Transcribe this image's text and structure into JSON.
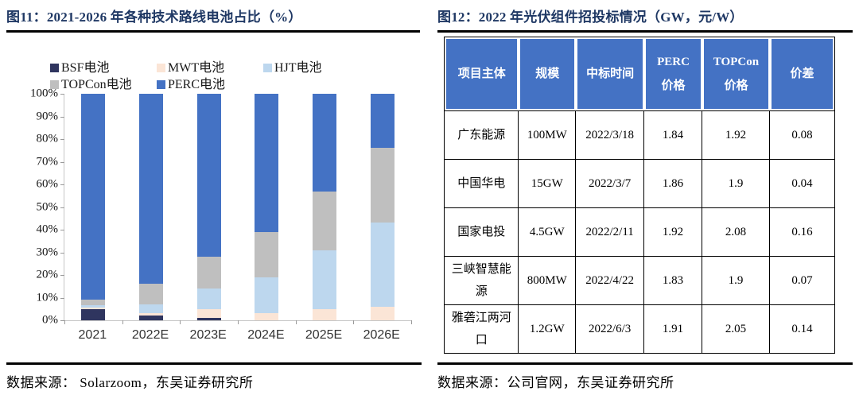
{
  "colors": {
    "title_navy": "#1f3864",
    "table_header_bg": "#4472c4",
    "rule_black": "#000000",
    "axis_gray": "#c6c6c6"
  },
  "left_panel": {
    "title": "图11：2021-2026 年各种技术路线电池占比（%）",
    "source": "数据来源： Solarzoom，东吴证券研究所"
  },
  "chart_data": {
    "type": "bar",
    "stacked": true,
    "percent_stack": true,
    "title": "2021-2026 年各种技术路线电池占比（%）",
    "xlabel": "",
    "ylabel": "",
    "ylim": [
      0,
      100
    ],
    "gridlines": false,
    "legend_position": "top",
    "categories": [
      "2021",
      "2022E",
      "2023E",
      "2024E",
      "2025E",
      "2026E"
    ],
    "series": [
      {
        "name": "BSF电池",
        "color": "#2f355f",
        "values": [
          5,
          2,
          1,
          0,
          0,
          0
        ]
      },
      {
        "name": "MWT电池",
        "color": "#fbe5d6",
        "values": [
          0.5,
          1,
          4,
          3,
          5,
          6
        ]
      },
      {
        "name": "HJT电池",
        "color": "#bdd7ee",
        "values": [
          1,
          4,
          9,
          16,
          26,
          37
        ]
      },
      {
        "name": "TOPCon电池",
        "color": "#bfbfbf",
        "values": [
          2.5,
          9,
          14,
          20,
          26,
          33
        ]
      },
      {
        "name": "PERC电池",
        "color": "#4472c4",
        "values": [
          91,
          84,
          72,
          61,
          43,
          24
        ]
      }
    ],
    "y_ticks": [
      "100%",
      "90%",
      "80%",
      "70%",
      "60%",
      "50%",
      "40%",
      "30%",
      "20%",
      "10%",
      "0%"
    ]
  },
  "right_panel": {
    "title": "图12：2022 年光伏组件招投标情况（GW，元/W）",
    "source": "数据来源：公司官网，东吴证券研究所",
    "table": {
      "headers": [
        [
          "项目主体"
        ],
        [
          "规模"
        ],
        [
          "中标时间"
        ],
        [
          "PERC",
          "价格"
        ],
        [
          "TOPCon",
          "价格"
        ],
        [
          "价差"
        ]
      ],
      "rows": [
        [
          "广东能源",
          "100MW",
          "2022/3/18",
          "1.84",
          "1.92",
          "0.08"
        ],
        [
          "中国华电",
          "15GW",
          "2022/3/7",
          "1.86",
          "1.9",
          "0.04"
        ],
        [
          "国家电投",
          "4.5GW",
          "2022/2/11",
          "1.92",
          "2.08",
          "0.16"
        ],
        [
          "三峡智慧能源",
          "800MW",
          "2022/4/22",
          "1.83",
          "1.9",
          "0.07"
        ],
        [
          "雅砻江两河口",
          "1.2GW",
          "2022/6/3",
          "1.91",
          "2.05",
          "0.14"
        ]
      ]
    }
  }
}
